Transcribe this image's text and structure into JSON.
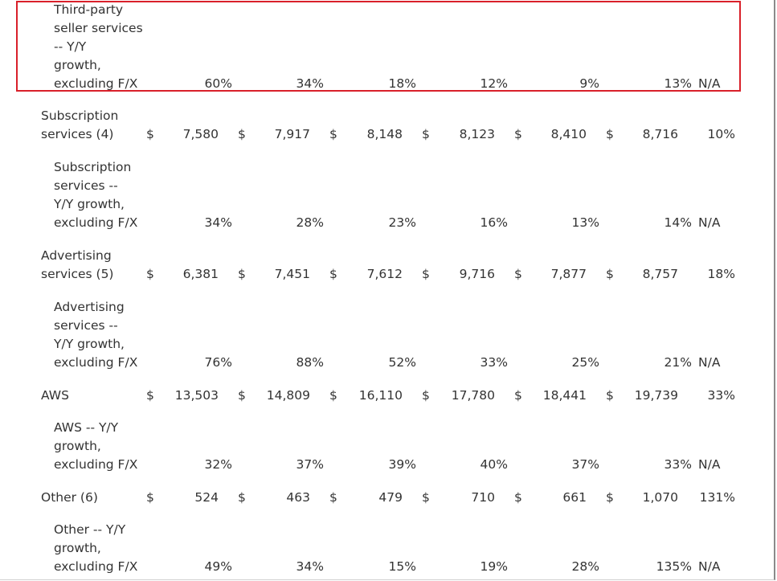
{
  "rows": [
    {
      "label": [
        "Third-party",
        "seller services",
        "-- Y/Y",
        "growth,",
        "excluding F/X"
      ],
      "sub": true,
      "type": "pct",
      "values": [
        "60%",
        "34%",
        "18%",
        "12%",
        "9%",
        "13%"
      ],
      "last": "N/A",
      "highlighted": true
    },
    {
      "label": [
        "Subscription",
        "services (4)"
      ],
      "sub": false,
      "type": "dollar",
      "values": [
        "7,580",
        "7,917",
        "8,148",
        "8,123",
        "8,410",
        "8,716"
      ],
      "last": "10%"
    },
    {
      "label": [
        "Subscription",
        "services --",
        "Y/Y growth,",
        "excluding F/X"
      ],
      "sub": true,
      "type": "pct",
      "values": [
        "34%",
        "28%",
        "23%",
        "16%",
        "13%",
        "14%"
      ],
      "last": "N/A"
    },
    {
      "label": [
        "Advertising",
        "services (5)"
      ],
      "sub": false,
      "type": "dollar",
      "values": [
        "6,381",
        "7,451",
        "7,612",
        "9,716",
        "7,877",
        "8,757"
      ],
      "last": "18%"
    },
    {
      "label": [
        "Advertising",
        "services --",
        "Y/Y growth,",
        "excluding F/X"
      ],
      "sub": true,
      "type": "pct",
      "values": [
        "76%",
        "88%",
        "52%",
        "33%",
        "25%",
        "21%"
      ],
      "last": "N/A"
    },
    {
      "label": [
        "AWS"
      ],
      "sub": false,
      "type": "dollar",
      "values": [
        "13,503",
        "14,809",
        "16,110",
        "17,780",
        "18,441",
        "19,739"
      ],
      "last": "33%"
    },
    {
      "label": [
        "AWS -- Y/Y",
        "growth,",
        "excluding F/X"
      ],
      "sub": true,
      "type": "pct",
      "values": [
        "32%",
        "37%",
        "39%",
        "40%",
        "37%",
        "33%"
      ],
      "last": "N/A"
    },
    {
      "label": [
        "Other (6)"
      ],
      "sub": false,
      "type": "dollar",
      "values": [
        "524",
        "463",
        "479",
        "710",
        "661",
        "1,070"
      ],
      "last": "131%"
    },
    {
      "label": [
        "Other -- Y/Y",
        "growth,",
        "excluding F/X"
      ],
      "sub": true,
      "type": "pct",
      "values": [
        "49%",
        "34%",
        "15%",
        "19%",
        "28%",
        "135%"
      ],
      "last": "N/A"
    }
  ],
  "currency_symbol": "$"
}
